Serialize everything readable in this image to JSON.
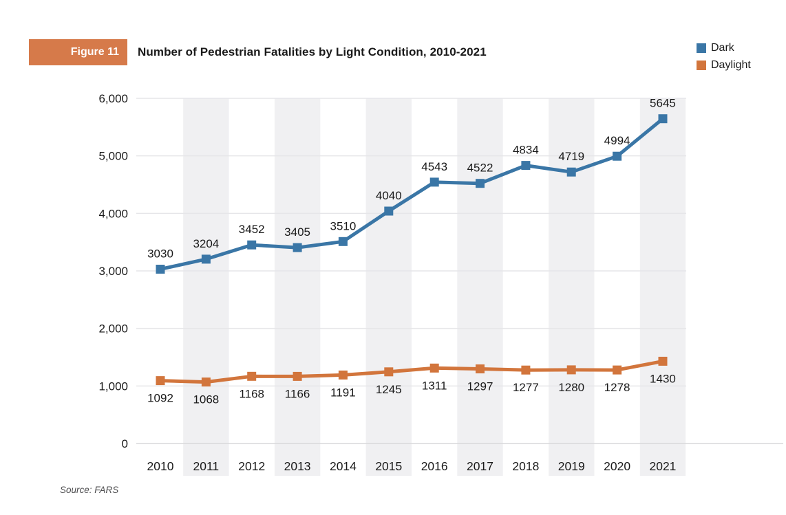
{
  "header": {
    "figure_label": "Figure 11",
    "title": "Number of Pedestrian Fatalities by Light Condition, 2010-2021"
  },
  "legend": [
    {
      "label": "Dark",
      "color": "#3A76A6"
    },
    {
      "label": "Daylight",
      "color": "#D2753C"
    }
  ],
  "footer": {
    "source": "Source: FARS"
  },
  "colors": {
    "dark_series": "#3A76A6",
    "daylight_series": "#D2753C",
    "figure_badge": "#D67A4A",
    "band": "#F0F0F2",
    "gridline": "#E6E6E9",
    "axis_line": "#D8D8DA",
    "text": "#1A1A1A",
    "source_text": "#4D4D4F"
  },
  "chart_data": {
    "type": "line",
    "title": "Number of Pedestrian Fatalities by Light Condition, 2010-2021",
    "categories": [
      "2010",
      "2011",
      "2012",
      "2013",
      "2014",
      "2015",
      "2016",
      "2017",
      "2018",
      "2019",
      "2020",
      "2021"
    ],
    "series": [
      {
        "name": "Dark",
        "color": "#3A76A6",
        "values": [
          3030,
          3204,
          3452,
          3405,
          3510,
          4040,
          4543,
          4522,
          4834,
          4719,
          4994,
          5645
        ],
        "label_position": "above"
      },
      {
        "name": "Daylight",
        "color": "#D2753C",
        "values": [
          1092,
          1068,
          1168,
          1166,
          1191,
          1245,
          1311,
          1297,
          1277,
          1280,
          1278,
          1430
        ],
        "label_position": "below"
      }
    ],
    "xlabel": "",
    "ylabel": "",
    "ylim": [
      0,
      6000
    ],
    "yticks": [
      0,
      1000,
      2000,
      3000,
      4000,
      5000,
      6000
    ],
    "ytick_labels": [
      "0",
      "1,000",
      "2,000",
      "3,000",
      "4,000",
      "5,000",
      "6,000"
    ],
    "grid": true,
    "shaded_columns": "alternating (odd years shaded light gray)",
    "marker": "square",
    "data_labels": true,
    "legend_position": "top-right",
    "source": "Source: FARS"
  }
}
